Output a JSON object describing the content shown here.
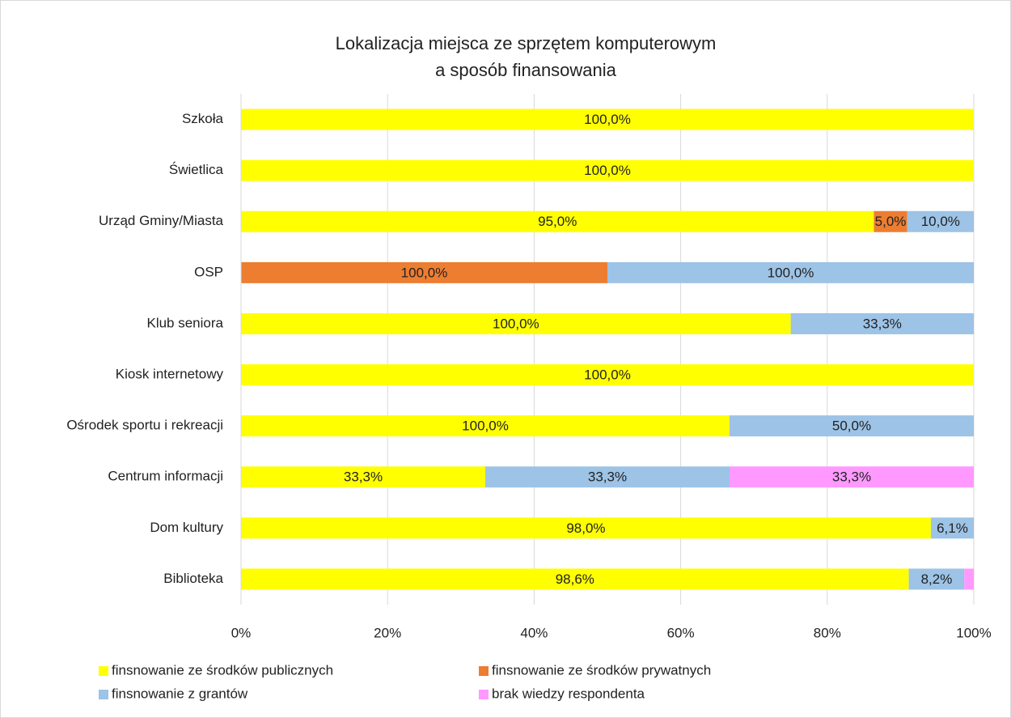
{
  "chart_data": {
    "type": "bar",
    "orientation": "horizontal",
    "stacking": "percent",
    "title": [
      "Lokalizacja miejsca ze sprzętem komputerowym",
      "a sposób finansowania"
    ],
    "categories": [
      "Szkoła",
      "Świetlica",
      "Urząd Gminy/Miasta",
      "OSP",
      "Klub seniora",
      "Kiosk internetowy",
      "Ośrodek sportu i rekreacji",
      "Centrum informacji",
      "Dom kultury",
      "Biblioteka"
    ],
    "series": [
      {
        "name": "finsnowanie ze środków publicznych",
        "color": "#ffff00",
        "values": [
          100,
          100,
          95,
          null,
          100,
          100,
          100,
          33.3,
          98,
          98.6
        ],
        "value_labels": [
          "100,0%",
          "100,0%",
          "95,0%",
          null,
          "100,0%",
          "100,0%",
          "100,0%",
          "33,3%",
          "98,0%",
          "98,6%"
        ]
      },
      {
        "name": "finsnowanie ze środków prywatnych",
        "color": "#ed7d31",
        "values": [
          null,
          null,
          5,
          100,
          null,
          null,
          null,
          null,
          null,
          null
        ],
        "value_labels": [
          null,
          null,
          "5,0%",
          "100,0%",
          null,
          null,
          null,
          null,
          null,
          null
        ]
      },
      {
        "name": "finsnowanie z grantów",
        "color": "#9dc3e6",
        "values": [
          null,
          null,
          10,
          100,
          33.3,
          null,
          50,
          33.3,
          6.1,
          8.2
        ],
        "value_labels": [
          null,
          null,
          "10,0%",
          "100,0%",
          "33,3%",
          null,
          "50,0%",
          "33,3%",
          "6,1%",
          "8,2%"
        ]
      },
      {
        "name": "brak wiedzy respondenta",
        "color": "#ff99ff",
        "values": [
          null,
          null,
          null,
          null,
          null,
          null,
          null,
          33.3,
          null,
          1.4
        ],
        "value_labels": [
          null,
          null,
          null,
          null,
          null,
          null,
          null,
          "33,3%",
          null,
          null
        ]
      }
    ],
    "xlim": [
      0,
      100
    ],
    "xticks": [
      {
        "value": 0,
        "label": "0%"
      },
      {
        "value": 20,
        "label": "20%"
      },
      {
        "value": 40,
        "label": "40%"
      },
      {
        "value": 60,
        "label": "60%"
      },
      {
        "value": 80,
        "label": "80%"
      },
      {
        "value": 100,
        "label": "100%"
      }
    ],
    "grid": true,
    "legend": "bottom"
  }
}
